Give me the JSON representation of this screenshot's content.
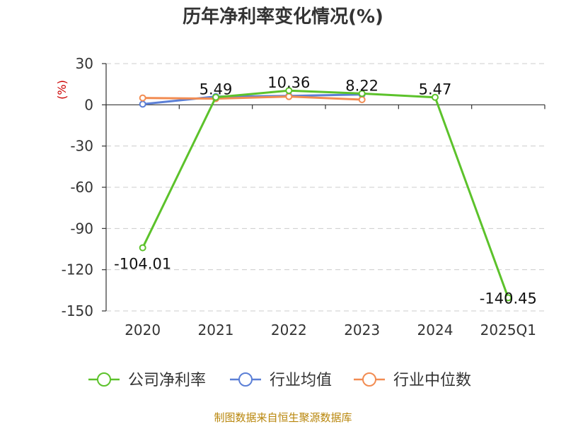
{
  "chart_data": {
    "type": "line",
    "title": "历年净利率变化情况(%)",
    "unit_label": "(%)",
    "categories": [
      "2020",
      "2021",
      "2022",
      "2023",
      "2024",
      "2025Q1"
    ],
    "ylim": [
      -150,
      30
    ],
    "yticks": [
      30,
      0,
      -30,
      -60,
      -90,
      -120,
      -150
    ],
    "grid": true,
    "legend_position": "bottom",
    "series": [
      {
        "name": "公司净利率",
        "color": "#5cc22b",
        "values": [
          -104.01,
          5.49,
          10.36,
          8.22,
          5.47,
          -140.45
        ],
        "show_labels": true
      },
      {
        "name": "行业均值",
        "color": "#5b7fd6",
        "values": [
          0.5,
          6.0,
          6.5,
          7.5,
          null,
          null
        ],
        "show_labels": false
      },
      {
        "name": "行业中位数",
        "color": "#f28c52",
        "values": [
          5.0,
          4.5,
          6.0,
          3.8,
          null,
          null
        ],
        "show_labels": false
      }
    ],
    "data_labels": [
      "-104.01",
      "5.49",
      "10.36",
      "8.22",
      "5.47",
      "-140.45"
    ]
  },
  "footer": {
    "source": "制图数据来自恒生聚源数据库"
  }
}
